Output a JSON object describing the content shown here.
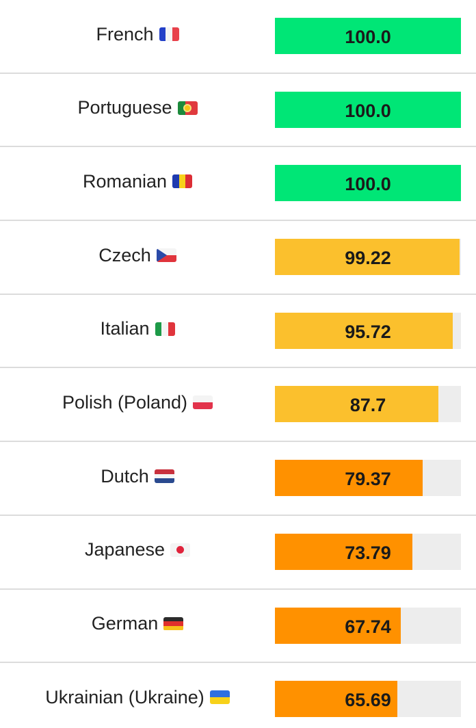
{
  "colors": {
    "complete": "#00e676",
    "high": "#fbc02d",
    "medium": "#ff9100",
    "track": "#ededed"
  },
  "rows": [
    {
      "language": "French",
      "flag_icon": "france-flag-icon",
      "percent_label": "100.0",
      "percent": 100.0,
      "level": "complete"
    },
    {
      "language": "Portuguese",
      "flag_icon": "portugal-flag-icon",
      "percent_label": "100.0",
      "percent": 100.0,
      "level": "complete"
    },
    {
      "language": "Romanian",
      "flag_icon": "romania-flag-icon",
      "percent_label": "100.0",
      "percent": 100.0,
      "level": "complete"
    },
    {
      "language": "Czech",
      "flag_icon": "czech-flag-icon",
      "percent_label": "99.22",
      "percent": 99.22,
      "level": "high"
    },
    {
      "language": "Italian",
      "flag_icon": "italy-flag-icon",
      "percent_label": "95.72",
      "percent": 95.72,
      "level": "high"
    },
    {
      "language": "Polish (Poland)",
      "flag_icon": "poland-flag-icon",
      "percent_label": "87.7",
      "percent": 87.7,
      "level": "high"
    },
    {
      "language": "Dutch",
      "flag_icon": "netherlands-flag-icon",
      "percent_label": "79.37",
      "percent": 79.37,
      "level": "medium"
    },
    {
      "language": "Japanese",
      "flag_icon": "japan-flag-icon",
      "percent_label": "73.79",
      "percent": 73.79,
      "level": "medium"
    },
    {
      "language": "German",
      "flag_icon": "germany-flag-icon",
      "percent_label": "67.74",
      "percent": 67.74,
      "level": "medium"
    },
    {
      "language": "Ukrainian (Ukraine)",
      "flag_icon": "ukraine-flag-icon",
      "percent_label": "65.69",
      "percent": 65.69,
      "level": "medium"
    }
  ]
}
